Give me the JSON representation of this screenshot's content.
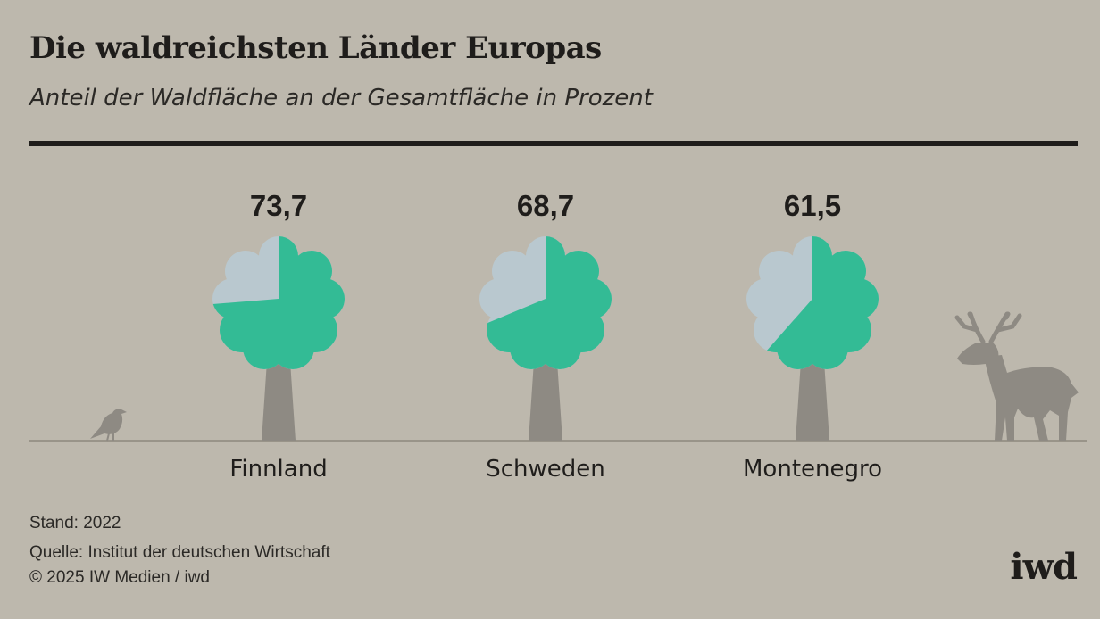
{
  "header": {
    "title": "Die waldreichsten Länder Europas",
    "subtitle": "Anteil der Waldfläche an der Gesamtfläche in Prozent"
  },
  "chart_data": {
    "type": "pie",
    "title": "Die waldreichsten Länder Europas",
    "subtitle": "Anteil der Waldfläche an der Gesamtfläche in Prozent",
    "categories": [
      "Finnland",
      "Schweden",
      "Montenegro"
    ],
    "values": [
      73.7,
      68.7,
      61.5
    ],
    "value_labels": [
      "73,7",
      "68,7",
      "61,5"
    ],
    "colors": {
      "forest": "#33bb95",
      "remainder": "#b9c8cf",
      "trunk": "#8e8a83",
      "animal": "#8e8a83",
      "background": "#bdb8ad"
    },
    "decorations": [
      "bird-icon",
      "deer-icon"
    ]
  },
  "footer": {
    "stand": "Stand: 2022",
    "quelle": "Quelle: Institut der deutschen Wirtschaft",
    "copyright": "© 2025 IW Medien / iwd",
    "logo": "iwd"
  }
}
